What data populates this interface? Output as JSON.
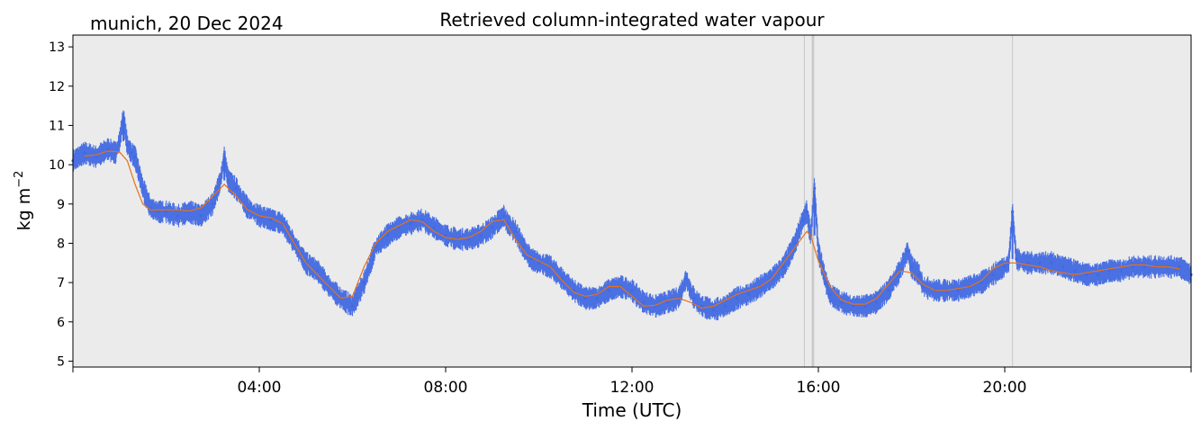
{
  "chart_data": {
    "type": "line",
    "title": "Retrieved column-integrated water vapour",
    "location_label": "munich, 20 Dec 2024",
    "xlabel": "Time (UTC)",
    "ylabel": "kg m",
    "ylabel_superscript": "−2",
    "xlim": [
      "00:00",
      "24:00"
    ],
    "ylim": [
      4.85,
      13.3
    ],
    "x_ticks": [
      "04:00",
      "08:00",
      "12:00",
      "16:00",
      "20:00"
    ],
    "y_ticks": [
      5,
      6,
      7,
      8,
      9,
      10,
      11,
      12,
      13
    ],
    "grid": false,
    "legend": "none",
    "colors": {
      "background": "#ebebeb",
      "raw": "#4169e1",
      "smoothed": "#e8701a",
      "gap_lines": "#c8c8c8"
    },
    "gap_markers": [
      "15:42",
      "15:52",
      "15:53",
      "15:54",
      "20:10"
    ],
    "series": [
      {
        "style": "raw-scatter",
        "x": [
          "00:00",
          "00:15",
          "00:30",
          "00:45",
          "00:55",
          "01:00",
          "01:05",
          "01:10",
          "01:15",
          "01:20",
          "01:30",
          "01:40",
          "01:50",
          "02:00",
          "02:15",
          "02:30",
          "02:45",
          "03:00",
          "03:10",
          "03:15",
          "03:20",
          "03:30",
          "03:45",
          "04:00",
          "04:15",
          "04:30",
          "04:45",
          "05:00",
          "05:15",
          "05:30",
          "05:45",
          "06:00",
          "06:15",
          "06:30",
          "06:45",
          "07:00",
          "07:15",
          "07:30",
          "07:45",
          "08:00",
          "08:15",
          "08:30",
          "08:45",
          "09:00",
          "09:10",
          "09:15",
          "09:20",
          "09:30",
          "09:40",
          "09:50",
          "10:00",
          "10:15",
          "10:30",
          "10:45",
          "11:00",
          "11:15",
          "11:30",
          "11:45",
          "12:00",
          "12:15",
          "12:30",
          "12:45",
          "13:00",
          "13:10",
          "13:15",
          "13:20",
          "13:30",
          "13:45",
          "14:00",
          "14:15",
          "14:30",
          "14:45",
          "15:00",
          "15:15",
          "15:30",
          "15:40",
          "15:45",
          "15:50",
          "15:55",
          "16:00",
          "16:10",
          "16:15",
          "16:30",
          "16:45",
          "17:00",
          "17:15",
          "17:30",
          "17:45",
          "17:55",
          "18:00",
          "18:10",
          "18:15",
          "18:30",
          "18:45",
          "19:00",
          "19:15",
          "19:30",
          "19:45",
          "20:00",
          "20:05",
          "20:10",
          "20:15",
          "20:30",
          "20:45",
          "21:00",
          "21:15",
          "21:30",
          "21:45",
          "22:00",
          "22:15",
          "22:30",
          "22:45",
          "23:00",
          "23:15",
          "23:30",
          "23:45",
          "24:00"
        ],
        "values": [
          10.1,
          10.3,
          10.2,
          10.4,
          10.3,
          10.6,
          11.2,
          10.5,
          10.3,
          10.2,
          9.4,
          8.9,
          8.8,
          8.8,
          8.7,
          8.8,
          8.7,
          9.0,
          9.6,
          10.2,
          9.6,
          9.4,
          8.9,
          8.7,
          8.6,
          8.5,
          8.0,
          7.5,
          7.3,
          6.9,
          6.6,
          6.4,
          7.0,
          7.9,
          8.2,
          8.4,
          8.5,
          8.6,
          8.4,
          8.2,
          8.1,
          8.1,
          8.2,
          8.4,
          8.6,
          8.7,
          8.5,
          8.3,
          7.9,
          7.6,
          7.5,
          7.4,
          7.1,
          6.8,
          6.6,
          6.6,
          6.8,
          6.9,
          6.8,
          6.5,
          6.4,
          6.5,
          6.6,
          7.1,
          6.8,
          6.6,
          6.4,
          6.3,
          6.4,
          6.6,
          6.7,
          6.9,
          7.1,
          7.4,
          8.0,
          8.6,
          8.8,
          8.2,
          9.4,
          7.8,
          7.0,
          6.7,
          6.5,
          6.4,
          6.4,
          6.5,
          6.8,
          7.3,
          7.8,
          7.4,
          7.2,
          6.9,
          6.8,
          6.8,
          6.8,
          6.9,
          7.0,
          7.2,
          7.4,
          7.5,
          8.8,
          7.6,
          7.5,
          7.5,
          7.5,
          7.4,
          7.3,
          7.2,
          7.2,
          7.3,
          7.3,
          7.4,
          7.4,
          7.4,
          7.4,
          7.4,
          7.2
        ]
      },
      {
        "style": "smoothed-line",
        "x": [
          "00:15",
          "00:30",
          "00:45",
          "01:00",
          "01:10",
          "01:20",
          "01:30",
          "01:40",
          "02:00",
          "02:15",
          "02:30",
          "02:45",
          "03:00",
          "03:15",
          "03:30",
          "03:45",
          "04:00",
          "04:15",
          "04:30",
          "04:45",
          "05:00",
          "05:15",
          "05:30",
          "05:45",
          "06:00",
          "06:15",
          "06:30",
          "06:45",
          "07:00",
          "07:15",
          "07:30",
          "07:45",
          "08:00",
          "08:15",
          "08:30",
          "08:45",
          "09:00",
          "09:15",
          "09:30",
          "09:45",
          "10:00",
          "10:15",
          "10:30",
          "10:45",
          "11:00",
          "11:15",
          "11:30",
          "11:45",
          "12:00",
          "12:15",
          "12:30",
          "12:45",
          "13:00",
          "13:15",
          "13:30",
          "13:45",
          "14:00",
          "14:15",
          "14:30",
          "14:45",
          "15:00",
          "15:15",
          "15:30",
          "15:45",
          "15:50",
          "16:00",
          "16:15",
          "16:30",
          "16:45",
          "17:00",
          "17:15",
          "17:30",
          "17:45",
          "18:00",
          "18:15",
          "18:30",
          "18:45",
          "19:00",
          "19:15",
          "19:30",
          "19:45",
          "20:00",
          "20:15",
          "20:30",
          "20:45",
          "21:00",
          "21:15",
          "21:30",
          "21:45",
          "22:00",
          "22:15",
          "22:30",
          "22:45",
          "23:00",
          "23:15",
          "23:30",
          "23:45"
        ],
        "values": [
          10.22,
          10.25,
          10.35,
          10.32,
          10.1,
          9.5,
          9.0,
          8.85,
          8.85,
          8.85,
          8.82,
          8.9,
          9.2,
          9.5,
          9.2,
          8.85,
          8.7,
          8.65,
          8.5,
          8.0,
          7.5,
          7.2,
          6.9,
          6.6,
          6.65,
          7.4,
          8.0,
          8.3,
          8.45,
          8.6,
          8.55,
          8.3,
          8.15,
          8.1,
          8.15,
          8.3,
          8.55,
          8.6,
          8.1,
          7.7,
          7.55,
          7.4,
          7.05,
          6.75,
          6.65,
          6.7,
          6.9,
          6.9,
          6.65,
          6.4,
          6.42,
          6.55,
          6.6,
          6.5,
          6.35,
          6.4,
          6.55,
          6.7,
          6.8,
          6.9,
          7.1,
          7.5,
          7.9,
          8.3,
          8.2,
          7.55,
          6.9,
          6.55,
          6.45,
          6.45,
          6.6,
          6.95,
          7.3,
          7.25,
          6.95,
          6.8,
          6.8,
          6.85,
          6.9,
          7.05,
          7.35,
          7.5,
          7.5,
          7.45,
          7.4,
          7.3,
          7.25,
          7.2,
          7.25,
          7.3,
          7.35,
          7.4,
          7.45,
          7.45,
          7.4,
          7.4,
          7.35
        ]
      }
    ]
  }
}
